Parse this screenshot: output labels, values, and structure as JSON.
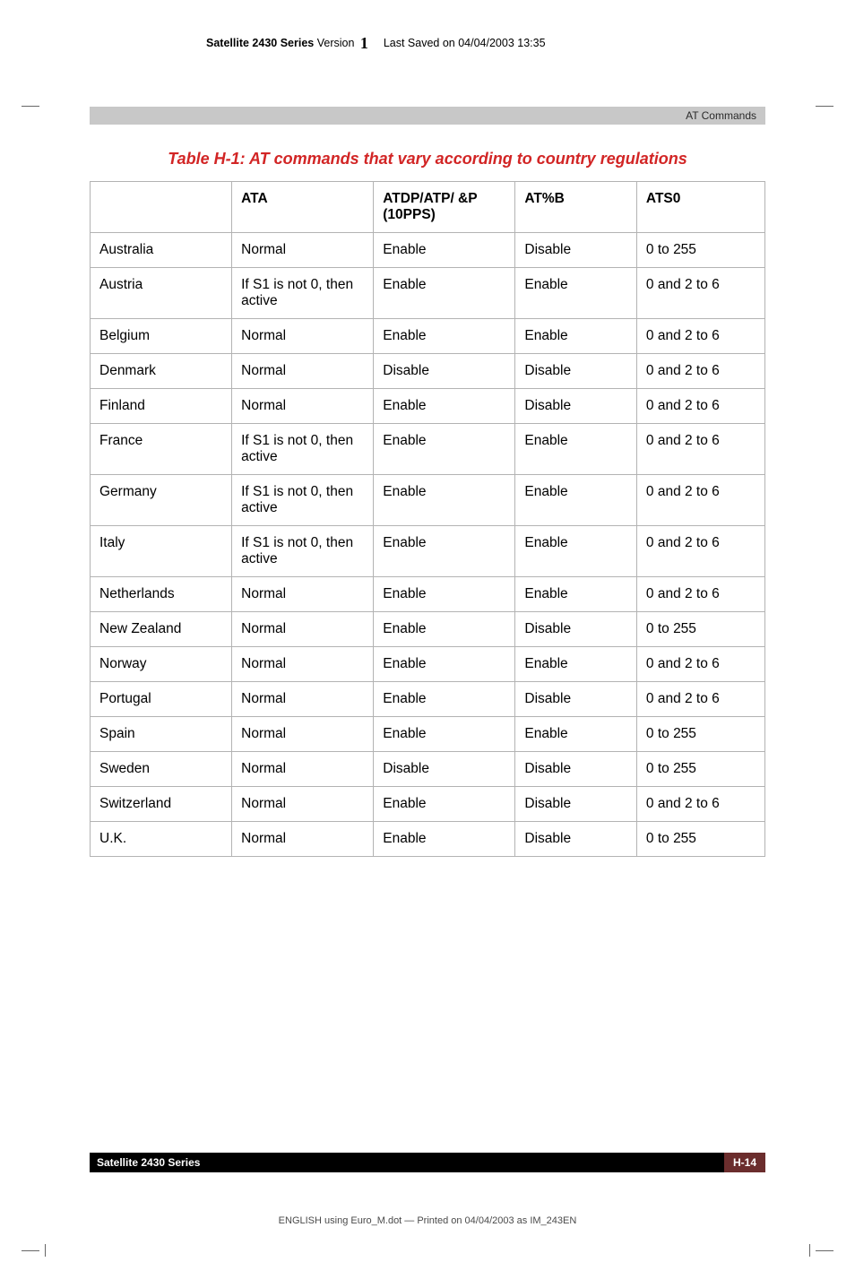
{
  "header": {
    "series_label": "Satellite 2430 Series",
    "version_label": "Version",
    "version_number": "1",
    "saved_label": "Last Saved on 04/04/2003 13:35"
  },
  "accent": {
    "title": "AT Commands"
  },
  "table": {
    "caption": "Table H-1: AT commands that vary according to country regulations",
    "columns": [
      "",
      "ATA",
      "ATDP/ATP/ &P (10PPS)",
      "AT%B",
      "ATS0"
    ],
    "rows": [
      [
        "Australia",
        "Normal",
        "Enable",
        "Disable",
        "0 to 255"
      ],
      [
        "Austria",
        "If S1 is not 0, then active",
        "Enable",
        "Enable",
        "0 and 2 to 6"
      ],
      [
        "Belgium",
        "Normal",
        "Enable",
        "Enable",
        "0 and 2 to 6"
      ],
      [
        "Denmark",
        "Normal",
        "Disable",
        "Disable",
        "0 and 2 to 6"
      ],
      [
        "Finland",
        "Normal",
        "Enable",
        "Disable",
        "0 and 2 to 6"
      ],
      [
        "France",
        "If S1 is not 0, then active",
        "Enable",
        "Enable",
        "0 and 2 to 6"
      ],
      [
        "Germany",
        "If S1 is not 0, then active",
        "Enable",
        "Enable",
        "0 and 2 to 6"
      ],
      [
        "Italy",
        "If S1 is not 0, then active",
        "Enable",
        "Enable",
        "0 and 2 to 6"
      ],
      [
        "Netherlands",
        "Normal",
        "Enable",
        "Enable",
        "0 and 2 to 6"
      ],
      [
        "New Zealand",
        "Normal",
        "Enable",
        "Disable",
        "0 to 255"
      ],
      [
        "Norway",
        "Normal",
        "Enable",
        "Enable",
        "0 and 2 to 6"
      ],
      [
        "Portugal",
        "Normal",
        "Enable",
        "Disable",
        "0 and 2 to 6"
      ],
      [
        "Spain",
        "Normal",
        "Enable",
        "Enable",
        "0 to 255"
      ],
      [
        "Sweden",
        "Normal",
        "Disable",
        "Disable",
        "0 to 255"
      ],
      [
        "Switzerland",
        "Normal",
        "Enable",
        "Disable",
        "0 and 2 to 6"
      ],
      [
        "U.K.",
        "Normal",
        "Enable",
        "Disable",
        "0 to 255"
      ]
    ]
  },
  "footer": {
    "left": "Satellite 2430 Series",
    "right": "H-14"
  },
  "print_meta": "ENGLISH using  Euro_M.dot — Printed on 04/04/2003 as IM_243EN"
}
